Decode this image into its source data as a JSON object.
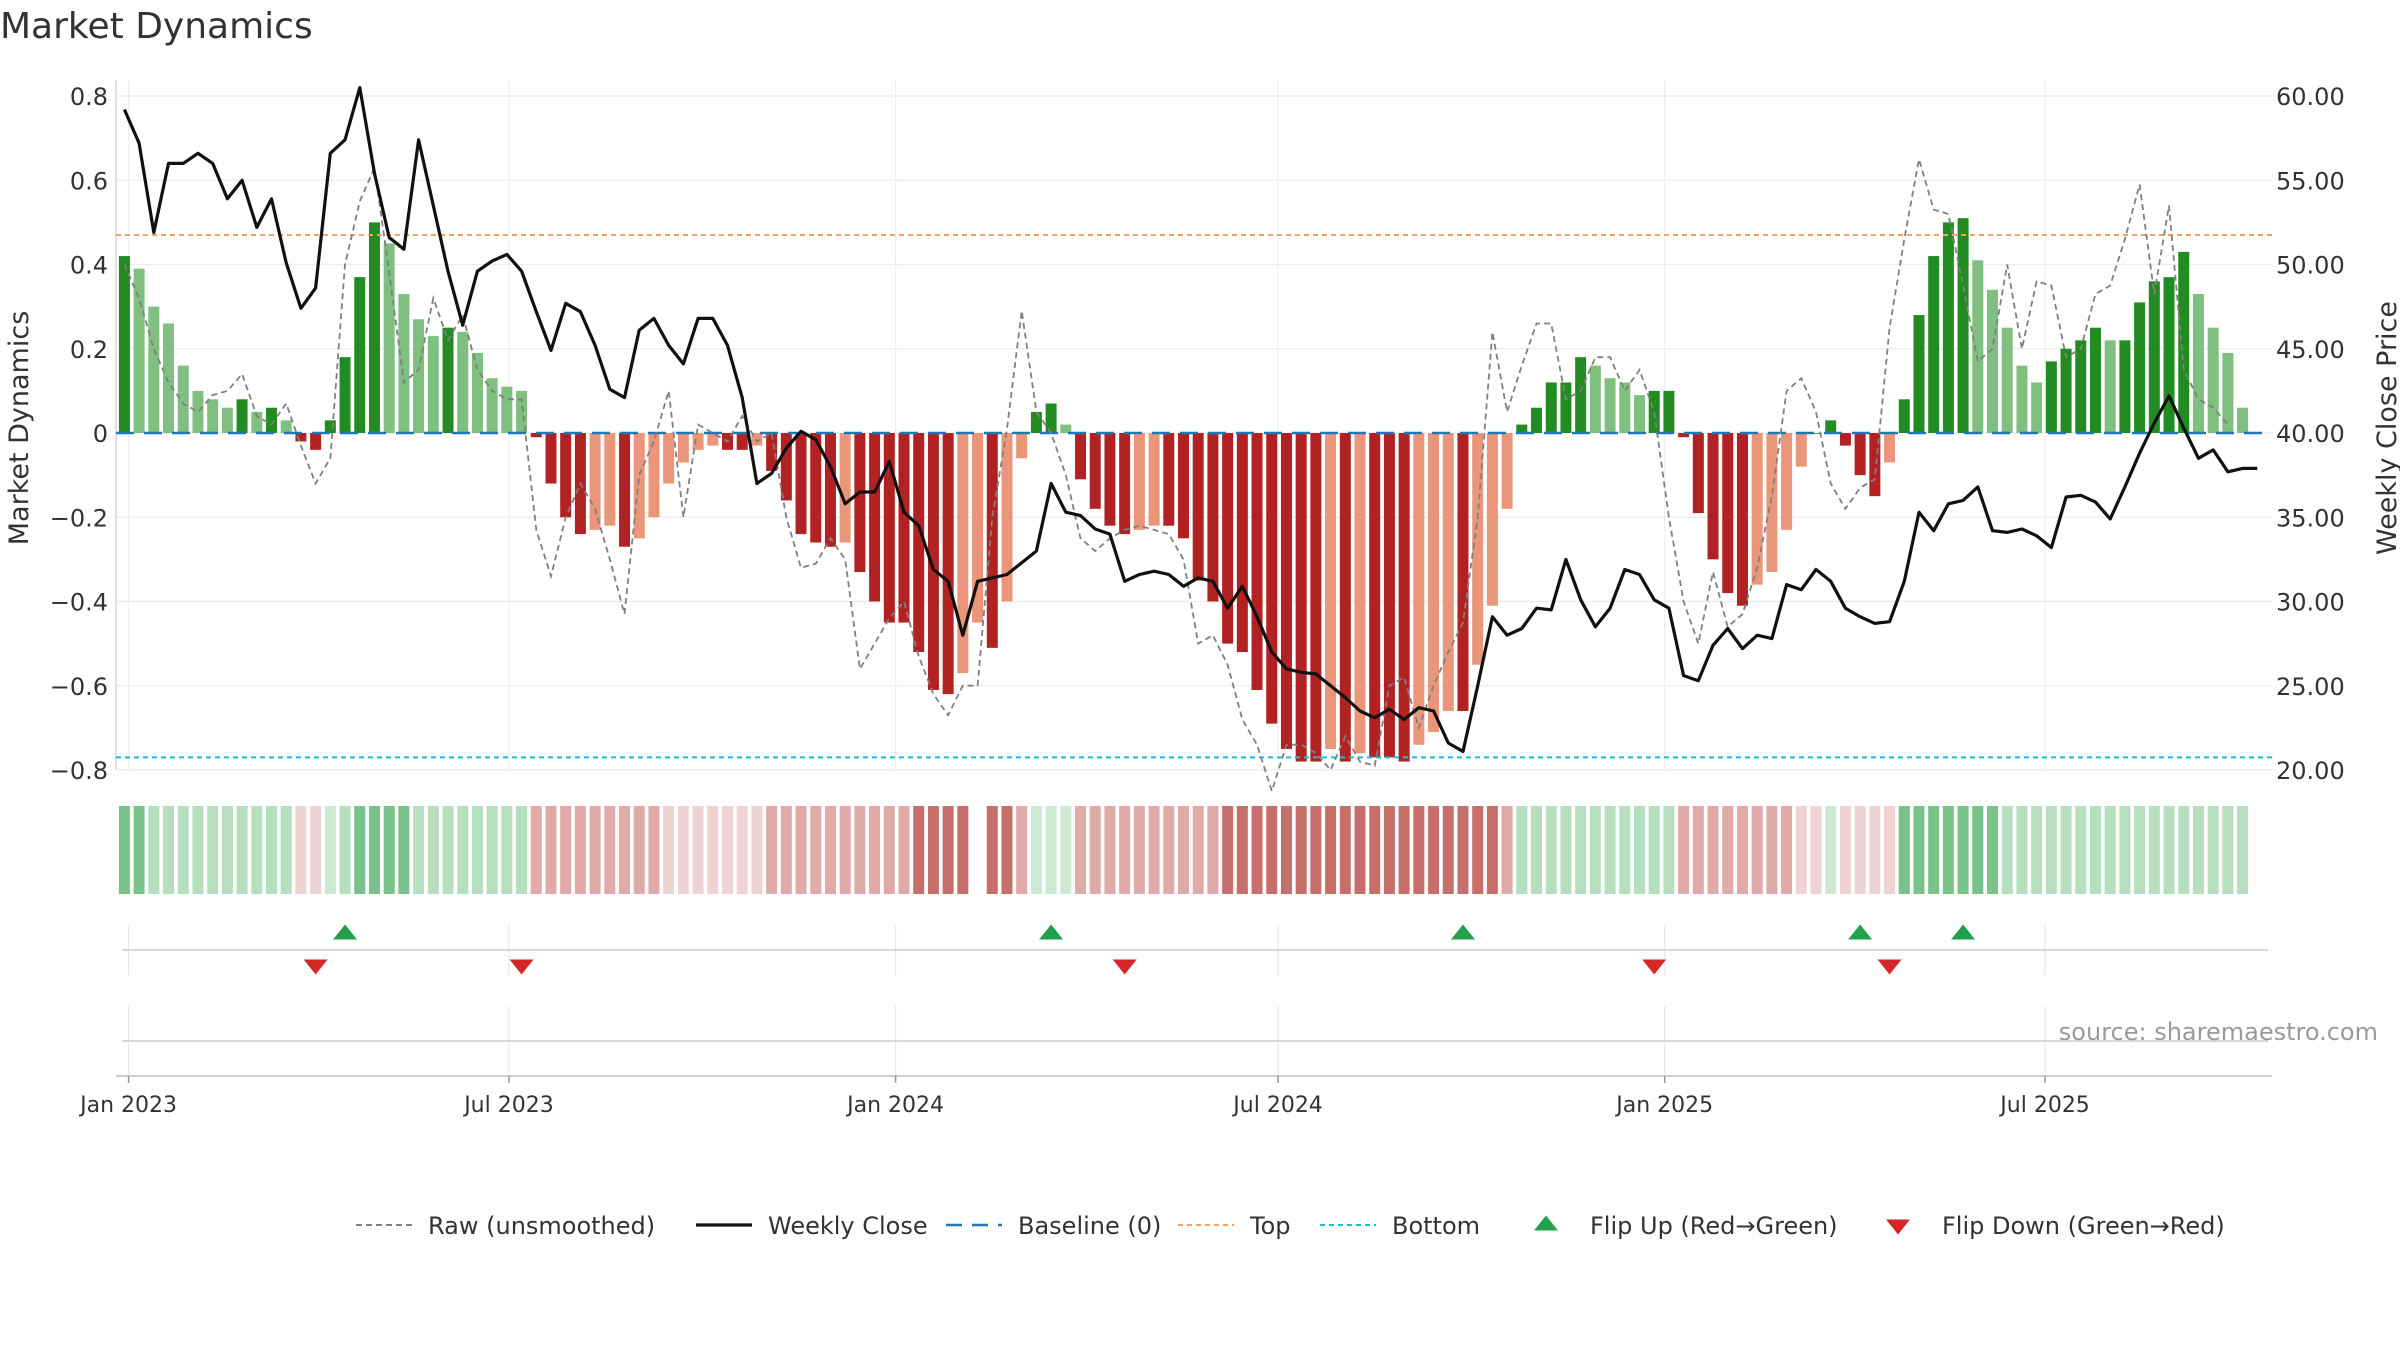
{
  "chart_data": {
    "type": "bar",
    "title": "Market Dynamics",
    "ylabel": "Market Dynamics",
    "y2label": "Weekly Close Price",
    "ylim": [
      -0.8,
      0.8
    ],
    "y2lim": [
      20.0,
      60.0
    ],
    "xlim": [
      "2022-12-26",
      "2025-10-17"
    ],
    "yticks": [
      "0.8",
      "0.6",
      "0.4",
      "0.2",
      "0",
      "−0.2",
      "−0.4",
      "−0.6",
      "−0.8"
    ],
    "y2ticks": [
      "60.00",
      "55.00",
      "50.00",
      "45.00",
      "40.00",
      "35.00",
      "30.00",
      "25.00",
      "20.00"
    ],
    "xticks": [
      {
        "date": "2023-01-01",
        "label": "Jan 2023"
      },
      {
        "date": "2023-07-01",
        "label": "Jul 2023"
      },
      {
        "date": "2024-01-01",
        "label": "Jan 2024"
      },
      {
        "date": "2024-07-01",
        "label": "Jul 2024"
      },
      {
        "date": "2025-01-01",
        "label": "Jan 2025"
      },
      {
        "date": "2025-07-01",
        "label": "Jul 2025"
      }
    ],
    "start_date": "2022-12-30",
    "week_step_days": 7,
    "bars": [
      0.42,
      0.39,
      0.3,
      0.26,
      0.16,
      0.1,
      0.08,
      0.06,
      0.08,
      0.05,
      0.06,
      0.03,
      -0.02,
      -0.04,
      0.03,
      0.18,
      0.37,
      0.5,
      0.45,
      0.33,
      0.27,
      0.23,
      0.25,
      0.24,
      0.19,
      0.13,
      0.11,
      0.1,
      -0.01,
      -0.12,
      -0.2,
      -0.24,
      -0.23,
      -0.22,
      -0.27,
      -0.25,
      -0.2,
      -0.12,
      -0.07,
      -0.04,
      -0.03,
      -0.04,
      -0.04,
      -0.03,
      -0.09,
      -0.16,
      -0.24,
      -0.26,
      -0.27,
      -0.26,
      -0.33,
      -0.4,
      -0.45,
      -0.45,
      -0.52,
      -0.61,
      -0.62,
      -0.57,
      -0.45,
      -0.51,
      -0.4,
      -0.06,
      0.05,
      0.07,
      0.02,
      -0.11,
      -0.18,
      -0.22,
      -0.24,
      -0.23,
      -0.22,
      -0.22,
      -0.25,
      -0.35,
      -0.4,
      -0.5,
      -0.52,
      -0.61,
      -0.69,
      -0.75,
      -0.78,
      -0.78,
      -0.75,
      -0.78,
      -0.76,
      -0.77,
      -0.77,
      -0.78,
      -0.74,
      -0.71,
      -0.66,
      -0.66,
      -0.55,
      -0.41,
      -0.18,
      0.02,
      0.06,
      0.12,
      0.12,
      0.18,
      0.16,
      0.13,
      0.12,
      0.09,
      0.1,
      0.1,
      -0.01,
      -0.19,
      -0.3,
      -0.38,
      -0.41,
      -0.36,
      -0.33,
      -0.23,
      -0.08,
      0.0,
      0.03,
      -0.03,
      -0.1,
      -0.15,
      -0.07,
      0.08,
      0.28,
      0.42,
      0.5,
      0.51,
      0.41,
      0.34,
      0.25,
      0.16,
      0.12,
      0.17,
      0.2,
      0.22,
      0.25,
      0.22,
      0.22,
      0.31,
      0.36,
      0.37,
      0.43,
      0.33,
      0.25,
      0.19,
      0.06
    ],
    "raw": [
      0.4,
      0.32,
      0.2,
      0.12,
      0.07,
      0.05,
      0.09,
      0.1,
      0.14,
      0.04,
      0.02,
      0.07,
      -0.03,
      -0.12,
      -0.06,
      0.4,
      0.55,
      0.63,
      0.38,
      0.12,
      0.15,
      0.32,
      0.22,
      0.28,
      0.15,
      0.1,
      0.08,
      0.08,
      -0.23,
      -0.34,
      -0.2,
      -0.12,
      -0.18,
      -0.3,
      -0.43,
      -0.1,
      -0.02,
      0.1,
      -0.2,
      0.02,
      0.0,
      -0.02,
      0.04,
      -0.02,
      0.0,
      -0.2,
      -0.32,
      -0.31,
      -0.25,
      -0.3,
      -0.56,
      -0.5,
      -0.44,
      -0.4,
      -0.53,
      -0.62,
      -0.67,
      -0.6,
      -0.6,
      -0.2,
      0.01,
      0.29,
      0.05,
      0.0,
      -0.1,
      -0.25,
      -0.28,
      -0.25,
      -0.23,
      -0.22,
      -0.23,
      -0.24,
      -0.3,
      -0.5,
      -0.48,
      -0.55,
      -0.68,
      -0.74,
      -0.85,
      -0.74,
      -0.74,
      -0.76,
      -0.8,
      -0.72,
      -0.78,
      -0.79,
      -0.6,
      -0.58,
      -0.7,
      -0.6,
      -0.52,
      -0.45,
      -0.2,
      0.24,
      0.05,
      0.16,
      0.26,
      0.26,
      0.08,
      0.1,
      0.18,
      0.18,
      0.1,
      0.15,
      0.05,
      -0.2,
      -0.4,
      -0.5,
      -0.33,
      -0.46,
      -0.43,
      -0.32,
      -0.15,
      0.1,
      0.13,
      0.05,
      -0.12,
      -0.18,
      -0.13,
      -0.11,
      0.25,
      0.46,
      0.65,
      0.53,
      0.52,
      0.35,
      0.17,
      0.2,
      0.4,
      0.2,
      0.36,
      0.35,
      0.18,
      0.2,
      0.33,
      0.35,
      0.46,
      0.59,
      0.33,
      0.54,
      0.15,
      0.08,
      0.06,
      0.02
    ],
    "close": [
      59.2,
      57.2,
      51.9,
      56.0,
      56.0,
      56.6,
      56.0,
      53.9,
      55.0,
      52.2,
      53.9,
      50.1,
      47.4,
      48.6,
      56.6,
      57.4,
      60.5,
      55.4,
      51.6,
      50.9,
      57.4,
      53.5,
      49.6,
      46.4,
      49.6,
      50.2,
      50.6,
      49.6,
      47.2,
      44.9,
      47.7,
      47.2,
      45.2,
      42.6,
      42.1,
      46.1,
      46.8,
      45.2,
      44.1,
      46.8,
      46.8,
      45.2,
      42.1,
      37.0,
      37.6,
      39.1,
      40.1,
      39.6,
      38.0,
      35.8,
      36.5,
      36.5,
      38.3,
      35.3,
      34.5,
      31.9,
      31.2,
      28.0,
      31.2,
      31.4,
      31.6,
      32.3,
      33.0,
      37.0,
      35.3,
      35.1,
      34.3,
      34.0,
      31.2,
      31.6,
      31.8,
      31.6,
      30.9,
      31.4,
      31.2,
      29.6,
      30.9,
      29.1,
      27.0,
      26.0,
      25.8,
      25.7,
      25.0,
      24.3,
      23.5,
      23.1,
      23.6,
      23.0,
      23.7,
      23.5,
      21.6,
      21.1,
      25.0,
      29.1,
      28.0,
      28.4,
      29.6,
      29.5,
      32.5,
      30.1,
      28.5,
      29.6,
      31.9,
      31.6,
      30.1,
      29.6,
      25.6,
      25.3,
      27.4,
      28.4,
      27.2,
      28.0,
      27.8,
      31.0,
      30.7,
      31.9,
      31.2,
      29.6,
      29.1,
      28.7,
      28.8,
      31.2,
      35.3,
      34.2,
      35.8,
      36.0,
      36.8,
      34.2,
      34.1,
      34.3,
      33.9,
      33.2,
      36.2,
      36.3,
      35.9,
      34.9,
      36.8,
      38.8,
      40.6,
      42.2,
      40.3,
      38.5,
      39.0,
      37.7,
      37.9,
      37.9
    ],
    "strip_levels": [
      "g2",
      "g2",
      "g1",
      "g1",
      "g1",
      "g1",
      "g1",
      "g1",
      "g1",
      "g1",
      "g1",
      "g1",
      "r0",
      "r0",
      "g0",
      "g1",
      "g2",
      "g2",
      "g2",
      "g2",
      "g1",
      "g1",
      "g1",
      "g1",
      "g1",
      "g1",
      "g1",
      "g1",
      "r1",
      "r1",
      "r1",
      "r1",
      "r1",
      "r1",
      "r1",
      "r1",
      "r1",
      "r0",
      "r0",
      "r0",
      "r0",
      "r0",
      "r0",
      "r0",
      "r1",
      "r1",
      "r1",
      "r1",
      "r1",
      "r1",
      "r1",
      "r1",
      "r1",
      "r1",
      "r2",
      "r2",
      "r2",
      "r2",
      "gap",
      "r2",
      "r2",
      "r1",
      "g0",
      "g0",
      "g0",
      "r1",
      "r1",
      "r1",
      "r1",
      "r1",
      "r1",
      "r1",
      "r1",
      "r1",
      "r1",
      "r2",
      "r2",
      "r2",
      "r2",
      "r2",
      "r2",
      "r2",
      "r2",
      "r2",
      "r2",
      "r2",
      "r2",
      "r2",
      "r2",
      "r2",
      "r2",
      "r2",
      "r2",
      "r2",
      "r1",
      "g1",
      "g1",
      "g1",
      "g1",
      "g1",
      "g1",
      "g1",
      "g1",
      "g1",
      "g1",
      "g1",
      "r1",
      "r1",
      "r1",
      "r1",
      "r1",
      "r1",
      "r1",
      "r1",
      "r0",
      "r0",
      "g0",
      "r0",
      "r0",
      "r0",
      "r0",
      "g2",
      "g2",
      "g2",
      "g2",
      "g2",
      "g2",
      "g2",
      "g1",
      "g1",
      "g1",
      "g1",
      "g1",
      "g1",
      "g1",
      "g1",
      "g1",
      "g1",
      "g1",
      "g1",
      "g1",
      "g1",
      "g1",
      "g1",
      "g1"
    ],
    "top_level": 0.47,
    "bottom_level": -0.77,
    "flips_up": [
      "2023-04-14",
      "2024-03-15",
      "2024-09-27",
      "2025-04-04",
      "2025-05-23"
    ],
    "flips_down": [
      "2023-03-31",
      "2023-07-07",
      "2024-04-19",
      "2024-12-27",
      "2025-04-18"
    ],
    "legend": [
      {
        "key": "raw",
        "label": "Raw (unsmoothed)"
      },
      {
        "key": "close",
        "label": "Weekly Close"
      },
      {
        "key": "baseline",
        "label": "Baseline (0)"
      },
      {
        "key": "top",
        "label": "Top"
      },
      {
        "key": "bottom",
        "label": "Bottom"
      },
      {
        "key": "flip_up",
        "label": "Flip Up (Red→Green)"
      },
      {
        "key": "flip_down",
        "label": "Flip Down (Green→Red)"
      }
    ],
    "legend_position": "bottom-center",
    "source": "source: sharemaestro.com",
    "colors": {
      "strong_green": "#228b22",
      "light_green": "#7fbf7f",
      "strong_red": "#b22222",
      "light_red": "#e9967a",
      "close": "#111111",
      "raw": "#808080",
      "baseline": "#1f77b4",
      "top": "#f4a460",
      "bottom": "#17becf",
      "flip_up": "#22a04b",
      "flip_down": "#d62728",
      "strip_g2": "#79c28a",
      "strip_g1": "#b6dfbf",
      "strip_g0": "#cde8d3",
      "strip_r2": "#c7706b",
      "strip_r1": "#dfaaa8",
      "strip_r0": "#efd3d3"
    }
  }
}
